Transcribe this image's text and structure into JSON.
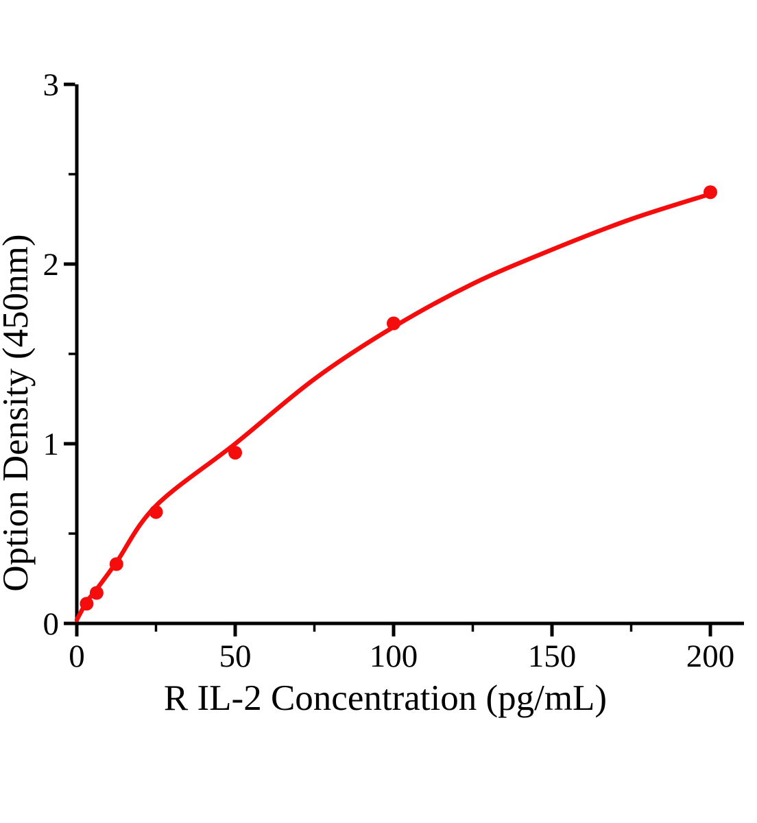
{
  "figure": {
    "background_color": "#ffffff",
    "axis_color": "#000000",
    "accent_color": "#f50d0d"
  },
  "chart_data": {
    "type": "scatter",
    "title": "",
    "xlabel": "R IL-2 Concentration (pg/mL)",
    "ylabel": "Option Density（450nm）",
    "xlim": [
      0,
      210
    ],
    "ylim": [
      0,
      3
    ],
    "grid": false,
    "legend": null,
    "x_ticks": [
      0,
      50,
      100,
      150,
      200
    ],
    "x_minor_ticks": [
      25,
      75,
      125,
      175
    ],
    "y_ticks": [
      0,
      1,
      2,
      3
    ],
    "y_minor_ticks": [
      0.5,
      1.5,
      2.5
    ],
    "series": [
      {
        "name": "standard-data-points",
        "type": "scatter",
        "color": "#f50d0d",
        "x": [
          3.125,
          6.25,
          12.5,
          25,
          50,
          100,
          200
        ],
        "y": [
          0.11,
          0.17,
          0.33,
          0.62,
          0.95,
          1.67,
          2.4
        ]
      },
      {
        "name": "fitted-curve",
        "type": "line",
        "color": "#f50d0d",
        "x": [
          0,
          3.125,
          6.25,
          12.5,
          25,
          50,
          75,
          100,
          125,
          150,
          175,
          200
        ],
        "y": [
          0.02,
          0.12,
          0.19,
          0.34,
          0.655,
          1.0,
          1.36,
          1.65,
          1.89,
          2.08,
          2.25,
          2.39
        ]
      }
    ]
  }
}
